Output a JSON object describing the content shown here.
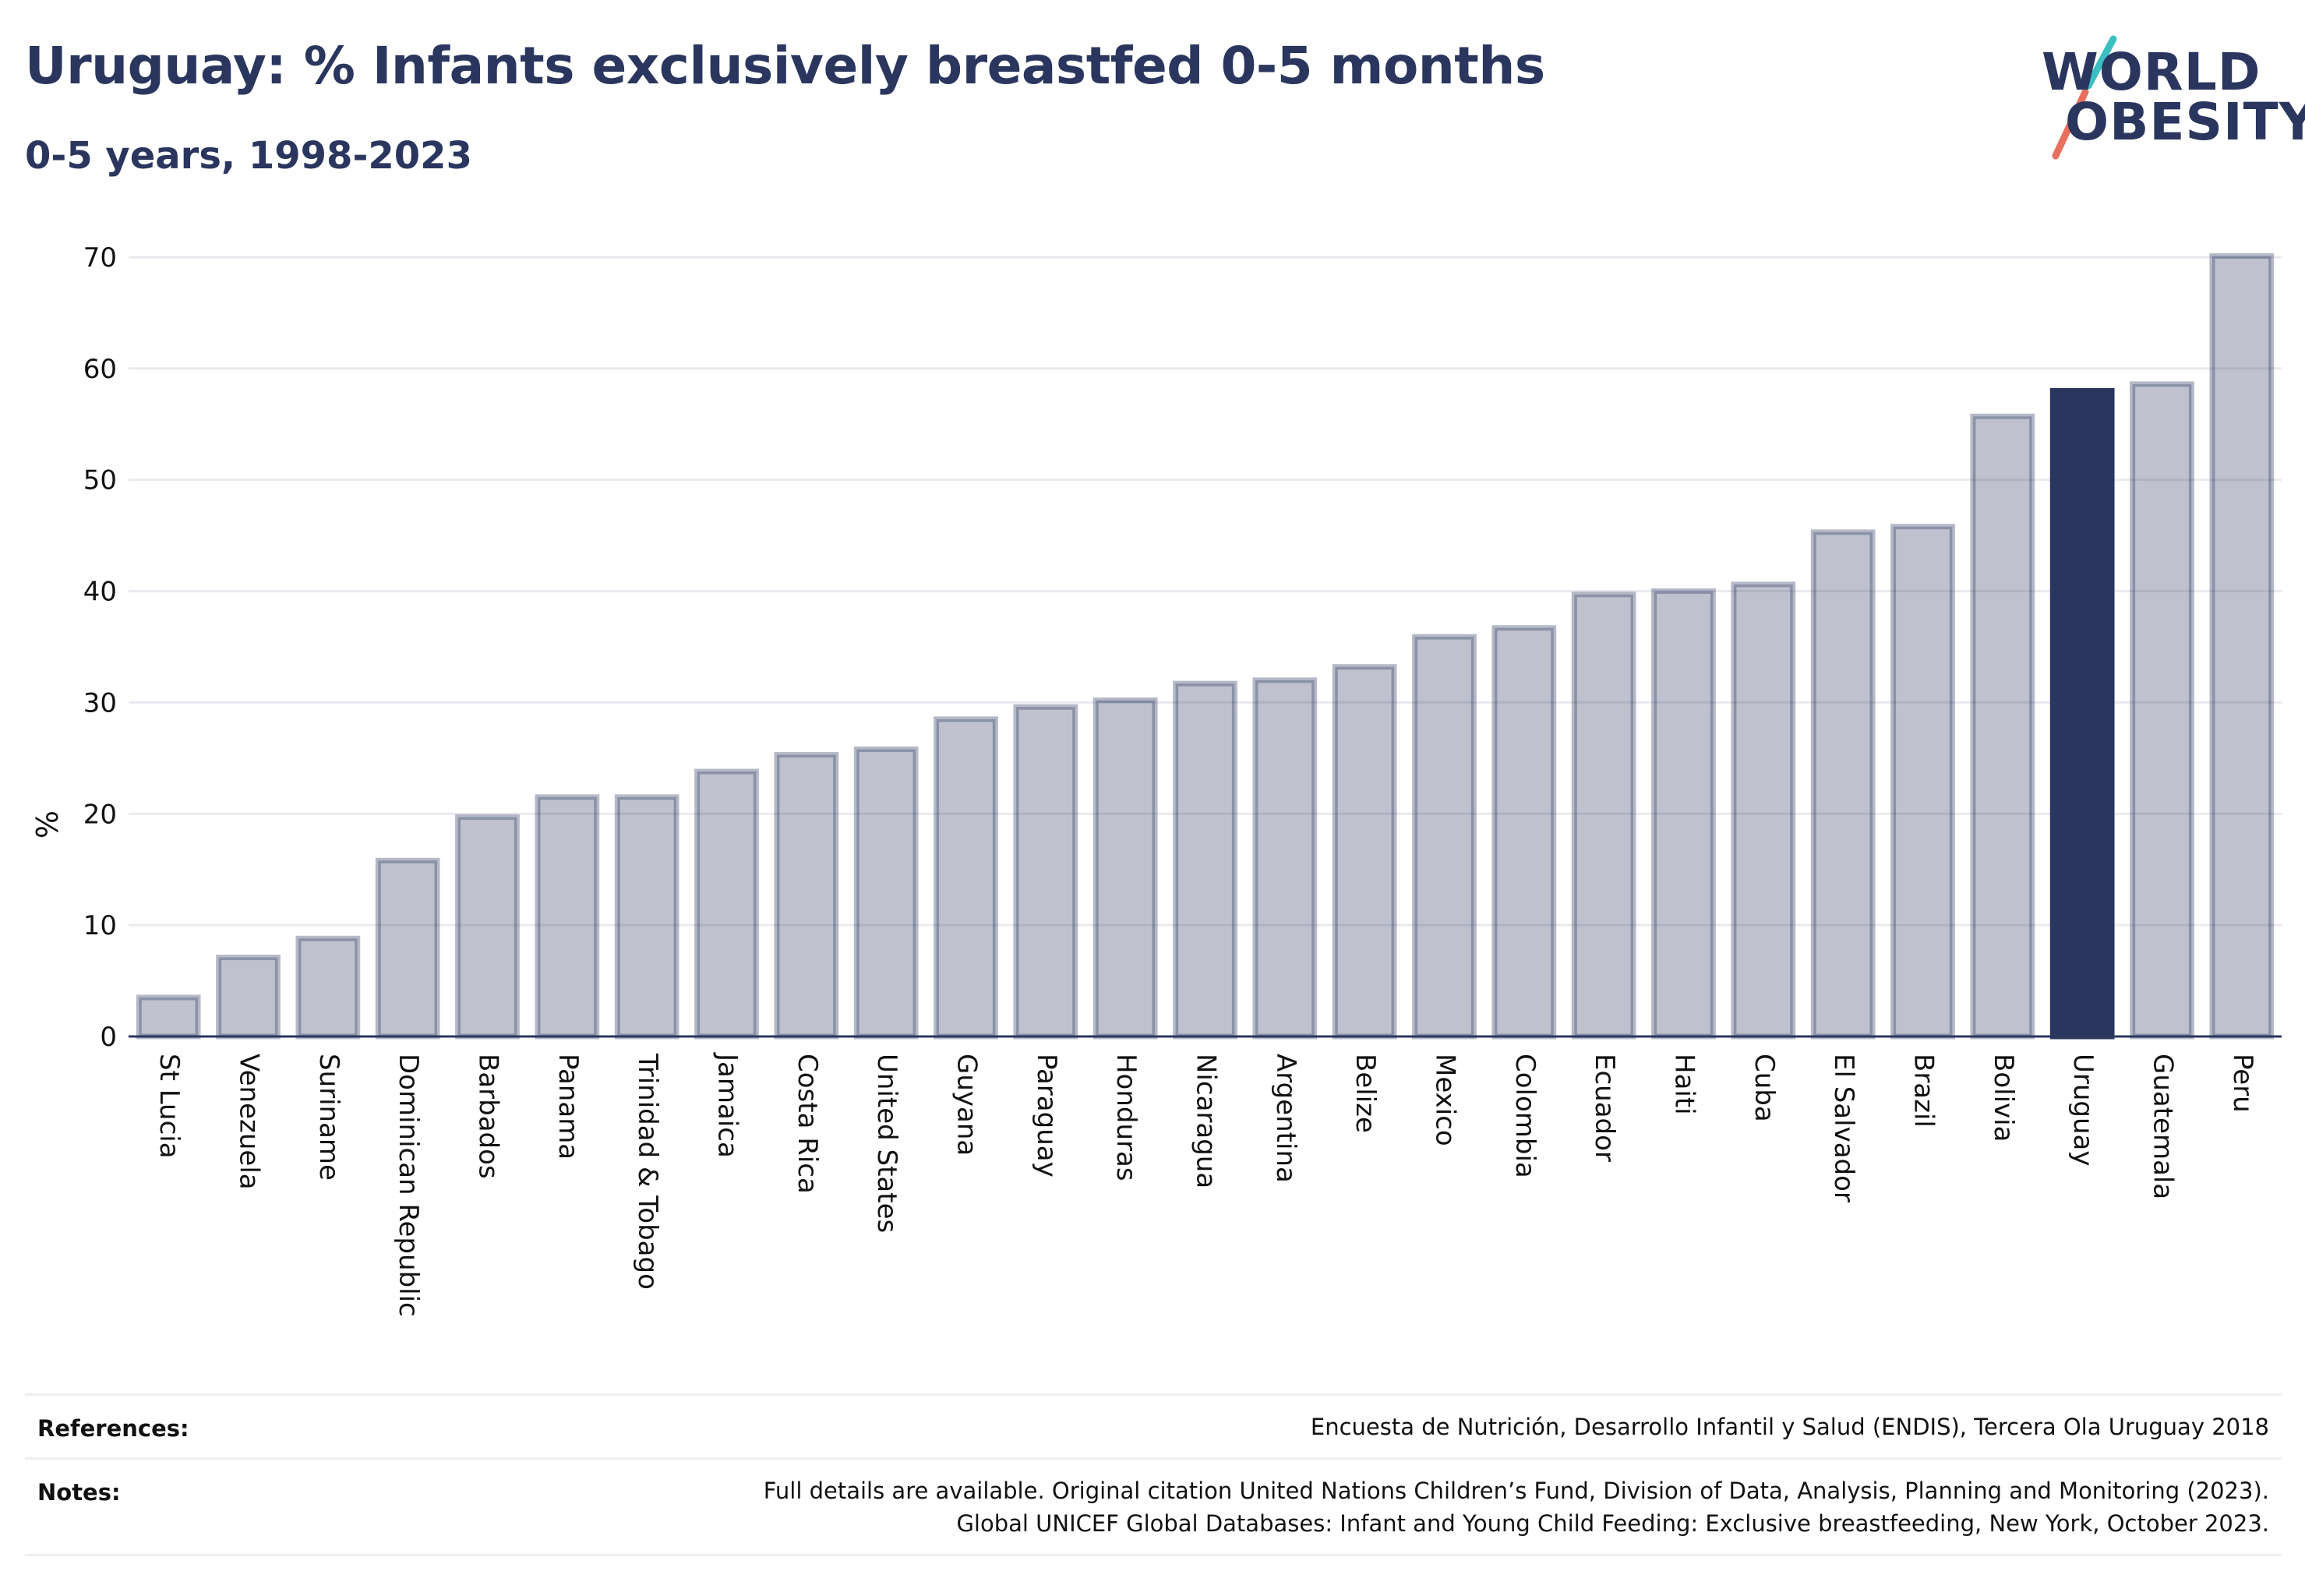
{
  "header": {
    "title": "Uruguay: % Infants exclusively breastfed 0-5 months",
    "subtitle": "0-5 years, 1998-2023"
  },
  "logo": {
    "line1": "WORLD",
    "line2": "OBESITY",
    "colors": {
      "text": "#2a365e",
      "slash_top": "#3bbfc0",
      "slash_bottom": "#e8705f"
    }
  },
  "chart_data": {
    "type": "bar",
    "ylabel": "%",
    "xlabel": "",
    "ylim": [
      0,
      70
    ],
    "yticks": [
      0,
      10,
      20,
      30,
      40,
      50,
      60,
      70
    ],
    "grid": true,
    "highlight": "Uruguay",
    "colors": {
      "bar": "#2a365e",
      "bar_fill_opacity": 0.3,
      "highlight": "#2a365e"
    },
    "categories": [
      "St Lucia",
      "Venezuela",
      "Suriname",
      "Dominican Republic",
      "Barbados",
      "Panama",
      "Trinidad & Tobago",
      "Jamaica",
      "Costa Rica",
      "United States",
      "Guyana",
      "Paraguay",
      "Honduras",
      "Nicaragua",
      "Argentina",
      "Belize",
      "Mexico",
      "Colombia",
      "Ecuador",
      "Haiti",
      "Cuba",
      "El Salvador",
      "Brazil",
      "Bolivia",
      "Uruguay",
      "Guatemala",
      "Peru"
    ],
    "values": [
      3.5,
      7.1,
      8.8,
      15.8,
      19.7,
      21.5,
      21.5,
      23.8,
      25.3,
      25.8,
      28.5,
      29.6,
      30.2,
      31.7,
      32.0,
      33.2,
      35.9,
      36.7,
      39.7,
      40.0,
      40.6,
      45.3,
      45.8,
      55.7,
      58.0,
      58.6,
      70.1
    ]
  },
  "footer": {
    "references_label": "References:",
    "references_text": "Encuesta de Nutrición, Desarrollo Infantil y Salud (ENDIS), Tercera Ola Uruguay 2018",
    "notes_label": "Notes:",
    "notes_line1": "Full details are available. Original citation United Nations Children’s Fund, Division of Data, Analysis, Planning and Monitoring (2023).",
    "notes_line2": "Global UNICEF Global Databases: Infant and Young Child Feeding: Exclusive breastfeeding, New York, October 2023."
  }
}
